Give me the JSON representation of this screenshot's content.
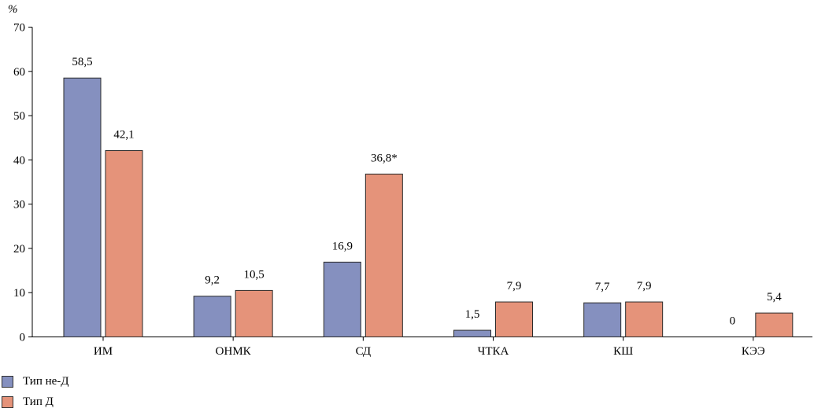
{
  "chart_data": {
    "type": "bar",
    "ylabel": "%",
    "ylim": [
      0,
      70
    ],
    "yticks": [
      0,
      10,
      20,
      30,
      40,
      50,
      60,
      70
    ],
    "categories": [
      "ИМ",
      "ОНМК",
      "СД",
      "ЧТКА",
      "КШ",
      "КЭЭ"
    ],
    "series": [
      {
        "name": "Тип не-Д",
        "color": "#8590bf",
        "values": [
          58.5,
          9.2,
          16.9,
          1.5,
          7.7,
          0
        ],
        "labels": [
          "58,5",
          "9,2",
          "16,9",
          "1,5",
          "7,7",
          "0"
        ]
      },
      {
        "name": "Тип Д",
        "color": "#e5937a",
        "values": [
          42.1,
          10.5,
          36.8,
          7.9,
          7.9,
          5.4
        ],
        "labels": [
          "42,1",
          "10,5",
          "36,8*",
          "7,9",
          "7,9",
          "5,4"
        ]
      }
    ],
    "grid": false,
    "legend_position": "bottom-left"
  }
}
